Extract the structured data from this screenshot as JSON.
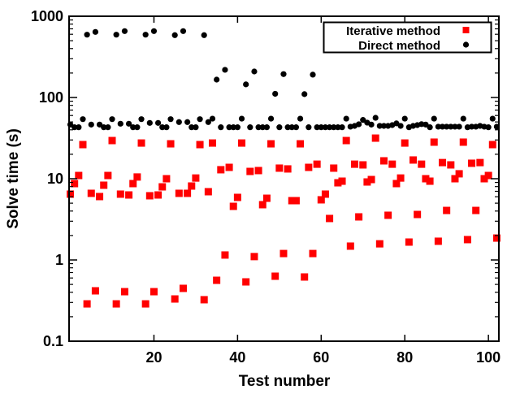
{
  "chart_data": {
    "type": "scatter",
    "title": "",
    "xlabel": "Test number",
    "ylabel": "Solve time (s)",
    "xlim": [
      -0.3,
      102.5
    ],
    "ylim": [
      0.1,
      1000
    ],
    "y_scale": "log",
    "x_ticks": [
      "20",
      "40",
      "60",
      "80",
      "100"
    ],
    "x_tick_values": [
      20,
      40,
      60,
      80,
      100
    ],
    "y_ticks": [
      "0.1",
      "1",
      "10",
      "100",
      "1000"
    ],
    "y_tick_values": [
      0.1,
      1,
      10,
      100,
      1000
    ],
    "grid": false,
    "legend_placement": "top-right",
    "x_start": 0,
    "series": [
      {
        "name": "Iterative method",
        "marker": "square",
        "color": "#ff0000",
        "values": [
          6.46,
          8.71,
          10.96,
          26.3,
          0.288,
          6.61,
          0.417,
          6.03,
          8.32,
          10.96,
          29.5,
          0.288,
          6.46,
          0.407,
          6.31,
          8.71,
          10.5,
          27.5,
          0.288,
          6.17,
          0.407,
          6.31,
          7.94,
          10,
          26.9,
          0.331,
          6.61,
          0.447,
          6.61,
          8.13,
          10.2,
          26.3,
          0.324,
          6.92,
          27.5,
          0.562,
          12.9,
          1.15,
          13.8,
          4.57,
          5.89,
          27.5,
          0.537,
          12.3,
          1.1,
          12.6,
          4.79,
          5.75,
          26.9,
          0.631,
          13.5,
          1.2,
          13.2,
          5.37,
          5.37,
          26.9,
          0.617,
          13.8,
          1.2,
          15.1,
          5.5,
          6.46,
          3.24,
          13.5,
          8.91,
          9.33,
          29.5,
          1.48,
          15.1,
          3.39,
          14.8,
          9.12,
          9.77,
          31.6,
          1.58,
          16.6,
          3.55,
          15.1,
          8.71,
          10.2,
          27.5,
          1.66,
          17.0,
          3.63,
          15.1,
          10,
          9.33,
          28.2,
          1.7,
          15.8,
          4.07,
          14.8,
          10,
          11.5,
          28.2,
          1.78,
          15.5,
          4.07,
          15.8,
          10,
          10.96,
          26.3,
          1.86
        ]
      },
      {
        "name": "Direct method",
        "marker": "circle",
        "color": "#000000",
        "values": [
          46.4,
          43,
          43,
          54.1,
          593,
          46.4,
          641,
          46.4,
          43,
          43,
          54.1,
          593,
          47.5,
          656,
          47.5,
          43,
          43,
          54.1,
          593,
          48.6,
          656,
          48.6,
          43,
          43,
          54.1,
          585,
          49.8,
          656,
          49.8,
          43,
          43,
          54.1,
          585,
          49.8,
          54.9,
          166,
          43,
          219,
          43,
          43,
          43,
          54.9,
          145,
          43,
          209,
          43,
          43,
          43,
          54.9,
          111,
          43,
          194,
          43,
          43,
          43,
          54.9,
          110,
          43,
          191,
          43,
          43,
          43,
          43,
          43,
          43,
          43,
          54.9,
          43.7,
          44.7,
          46.8,
          52.9,
          49,
          46.4,
          56.2,
          44.7,
          44.7,
          44.7,
          45.7,
          48,
          44.7,
          54.9,
          43,
          44.7,
          45.7,
          47,
          46.4,
          43,
          54.9,
          43.7,
          43.7,
          43.7,
          43.7,
          43.7,
          43.7,
          54.9,
          43,
          43.7,
          43.7,
          44.7,
          43.7,
          43,
          54.9,
          43.7
        ]
      }
    ]
  }
}
